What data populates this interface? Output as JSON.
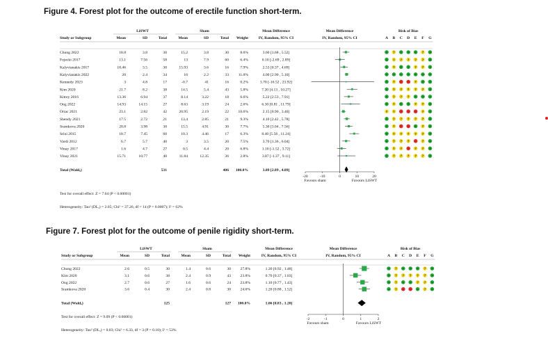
{
  "rob_letters": [
    "A",
    "B",
    "C",
    "D",
    "E",
    "F",
    "G"
  ],
  "rob_colors": {
    "g": "#22a532",
    "y": "#f0d81c",
    "r": "#e02a2a"
  },
  "rob_symbols": {
    "g": "+",
    "y": "?",
    "r": "-"
  },
  "headers": {
    "liswt": "LiSWT",
    "sham": "Sham",
    "study": "Study or Subgroup",
    "mean": "Mean",
    "sd": "SD",
    "total": "Total",
    "weight": "Weight",
    "md": "Mean Difference",
    "md_sub": "IV, Random, 95% CI",
    "rob": "Risk of Bias"
  },
  "chart_data": [
    {
      "type": "forest",
      "title": "Figure 4.   Forest plot for the outcome of erectile function short-term.",
      "xlim": [
        -20,
        20
      ],
      "ticks": [
        "-20",
        "-10",
        "0",
        "10",
        "20"
      ],
      "tick_values": [
        -20,
        -10,
        0,
        10,
        20
      ],
      "favours_left": "Favours sham",
      "favours_right": "Favours LiSWT",
      "studies": [
        {
          "name": "Chung 2022",
          "m1": "18.8",
          "sd1": "3.8",
          "n1": "30",
          "m2": "15.2",
          "sd2": "3.8",
          "n2": "30",
          "w": "8.6%",
          "ci": "3.60 [1.68 , 5.52]",
          "est": 3.6,
          "lo": 1.68,
          "hi": 5.52,
          "rob": "gygggyg"
        },
        {
          "name": "Fojecki 2017",
          "m1": "13.1",
          "sd1": "7.56",
          "n1": "58",
          "m2": "13",
          "sd2": "7.9",
          "n2": "60",
          "w": "6.4%",
          "ci": "0.10 [-2.69 , 2.89]",
          "est": 0.1,
          "lo": -2.69,
          "hi": 2.89,
          "rob": "gyyyyyg"
        },
        {
          "name": "Kalyvianakis 2017",
          "m1": "18.46",
          "sd1": "3.5",
          "n1": "30",
          "m2": "15.93",
          "sd2": "3.6",
          "n2": "16",
          "w": "7.9%",
          "ci": "2.53 [0.37 , 4.69]",
          "est": 2.53,
          "lo": 0.37,
          "hi": 4.69,
          "rob": "gyggyyg"
        },
        {
          "name": "Kalyvianakis 2022",
          "m1": "20",
          "sd1": "2.4",
          "n1": "34",
          "m2": "16",
          "sd2": "2.2",
          "n2": "33",
          "w": "11.0%",
          "ci": "4.00 [2.90 , 5.10]",
          "est": 4.0,
          "lo": 2.9,
          "hi": 5.1,
          "rob": "ggggggg"
        },
        {
          "name": "Kennedy 2023",
          "m1": "3",
          "sd1": "4.8",
          "n1": "17",
          "m2": "-0.7",
          "sd2": "41",
          "n2": "16",
          "w": "0.2%",
          "ci": "3.70 [-16.52 , 23.92]",
          "est": 3.7,
          "lo": -16.52,
          "hi": 23.92,
          "rob": "gyrrygg"
        },
        {
          "name": "Kim 2020",
          "m1": "21.7",
          "sd1": "8.2",
          "n1": "38",
          "m2": "14.5",
          "sd2": "5.4",
          "n2": "43",
          "w": "5.8%",
          "ci": "7.20 [4.13 , 10.27]",
          "est": 7.2,
          "lo": 4.13,
          "hi": 10.27,
          "rob": "gyyyyyg"
        },
        {
          "name": "Kitrey 2016",
          "m1": "13.36",
          "sd1": "6.94",
          "n1": "37",
          "m2": "8.14",
          "sd2": "3.22",
          "n2": "18",
          "w": "6.6%",
          "ci": "5.22 [2.53 , 7.91]",
          "est": 5.22,
          "lo": 2.53,
          "hi": 7.91,
          "rob": "gyyyggg"
        },
        {
          "name": "Ong 2022",
          "m1": "14.93",
          "sd1": "14.15",
          "n1": "27",
          "m2": "8.63",
          "sd2": "3.19",
          "n2": "24",
          "w": "2.6%",
          "ci": "6.30 [0.81 , 11.79]",
          "est": 6.3,
          "lo": 0.81,
          "hi": 11.79,
          "rob": "gyggyyg"
        },
        {
          "name": "Ortac 2021",
          "m1": "23.1",
          "sd1": "2.82",
          "n1": "42",
          "m2": "20.95",
          "sd2": "2.19",
          "n2": "22",
          "w": "10.6%",
          "ci": "2.15 [0.90 , 3.40]",
          "est": 2.15,
          "lo": 0.9,
          "hi": 3.4,
          "rob": "yyrrryg"
        },
        {
          "name": "Shendy 2021",
          "m1": "17.5",
          "sd1": "2.72",
          "n1": "21",
          "m2": "13.4",
          "sd2": "2.85",
          "n2": "21",
          "w": "9.3%",
          "ci": "4.10 [2.42 , 5.78]",
          "est": 4.1,
          "lo": 2.42,
          "hi": 5.78,
          "rob": "gyyyyyg"
        },
        {
          "name": "Sramkova 2020",
          "m1": "20.8",
          "sd1": "3.98",
          "n1": "30",
          "m2": "15.5",
          "sd2": "4.91",
          "n2": "30",
          "w": "7.7%",
          "ci": "5.30 [3.04 , 7.56]",
          "est": 5.3,
          "lo": 3.04,
          "hi": 7.56,
          "rob": "gyrrgyg"
        },
        {
          "name": "Srini 2015",
          "m1": "18.7",
          "sd1": "7.45",
          "n1": "60",
          "m2": "10.3",
          "sd2": "4.46",
          "n2": "17",
          "w": "6.3%",
          "ci": "8.40 [5.56 , 11.24]",
          "est": 8.4,
          "lo": 5.56,
          "hi": 11.24,
          "rob": "gyyyyyg"
        },
        {
          "name": "Vardi 2012",
          "m1": "6.7",
          "sd1": "5.7",
          "n1": "40",
          "m2": "3",
          "sd2": "3.5",
          "n2": "20",
          "w": "7.5%",
          "ci": "3.70 [1.36 , 6.04]",
          "est": 3.7,
          "lo": 1.36,
          "hi": 6.04,
          "rob": "gyyyryg"
        },
        {
          "name": "Vinay 2017",
          "m1": "1.6",
          "sd1": "4.7",
          "n1": "27",
          "m2": "0.5",
          "sd2": "4.4",
          "n2": "20",
          "w": "6.8%",
          "ci": "1.10 [-1.52 , 3.72]",
          "est": 1.1,
          "lo": -1.52,
          "hi": 3.72,
          "rob": "gyyryyg"
        },
        {
          "name": "Vinay 2021",
          "m1": "15.71",
          "sd1": "10.77",
          "n1": "40",
          "m2": "11.84",
          "sd2": "12.35",
          "n2": "36",
          "w": "2.8%",
          "ci": "3.87 [-1.37 , 9.11]",
          "est": 3.87,
          "lo": -1.37,
          "hi": 9.11,
          "rob": "gyyyyyg"
        }
      ],
      "total": {
        "label": "Total (Waldₐ)",
        "n1": "531",
        "n2": "406",
        "w": "100.0%",
        "ci": "3.89 [2.89 , 4.89]",
        "est": 3.89,
        "lo": 2.89,
        "hi": 4.89
      },
      "test": "Test for overall effect: Z = 7.64 (P < 0.00001)",
      "het": "Heterogeneity: Tau² (DLₐ) = 2.05; Chi² = 37.26, df = 14 (P = 0.0007); I² = 62%"
    },
    {
      "type": "forest",
      "title": "Figure 7.   Forest plot for the outcome of penile rigidity short-term.",
      "xlim": [
        -2,
        2
      ],
      "ticks": [
        "-2",
        "-1",
        "0",
        "1",
        "2"
      ],
      "tick_values": [
        -2,
        -1,
        0,
        1,
        2
      ],
      "favours_left": "Favours sham",
      "favours_right": "Favours LiSWT",
      "studies": [
        {
          "name": "Chung 2022",
          "m1": "2.6",
          "sd1": "0.5",
          "n1": "30",
          "m2": "1.4",
          "sd2": "0.6",
          "n2": "30",
          "w": "27.8%",
          "ci": "1.20 [0.92 , 1.48]",
          "est": 1.2,
          "lo": 0.92,
          "hi": 1.48,
          "rob": "gygggyg"
        },
        {
          "name": "Kim 2020",
          "m1": "3.1",
          "sd1": "0.6",
          "n1": "38",
          "m2": "2.4",
          "sd2": "0.9",
          "n2": "43",
          "w": "23.8%",
          "ci": "0.70 [0.37 , 1.03]",
          "est": 0.7,
          "lo": 0.37,
          "hi": 1.03,
          "rob": "gyyyyyg"
        },
        {
          "name": "Ong 2022",
          "m1": "2.7",
          "sd1": "0.6",
          "n1": "27",
          "m2": "1.6",
          "sd2": "0.6",
          "n2": "24",
          "w": "23.8%",
          "ci": "1.10 [0.77 , 1.43]",
          "est": 1.1,
          "lo": 0.77,
          "hi": 1.43,
          "rob": "gyggyyg"
        },
        {
          "name": "Sramkova 2020",
          "m1": "3.6",
          "sd1": "0.4",
          "n1": "30",
          "m2": "2.4",
          "sd2": "0.8",
          "n2": "30",
          "w": "24.6%",
          "ci": "1.20 [0.88 , 1.52]",
          "est": 1.2,
          "lo": 0.88,
          "hi": 1.52,
          "rob": "gyrrgyg"
        }
      ],
      "total": {
        "label": "Total (Waldₐ)",
        "n1": "125",
        "n2": "127",
        "w": "100.0%",
        "ci": "1.06 [0.83 , 1.28]",
        "est": 1.06,
        "lo": 0.83,
        "hi": 1.28
      },
      "test": "Test for overall effect: Z = 9.09 (P < 0.00001)",
      "het": "Heterogeneity: Tau² (DLₐ) = 0.03; Chi² = 6.33, df = 3 (P = 0.10); I² = 53%"
    }
  ]
}
